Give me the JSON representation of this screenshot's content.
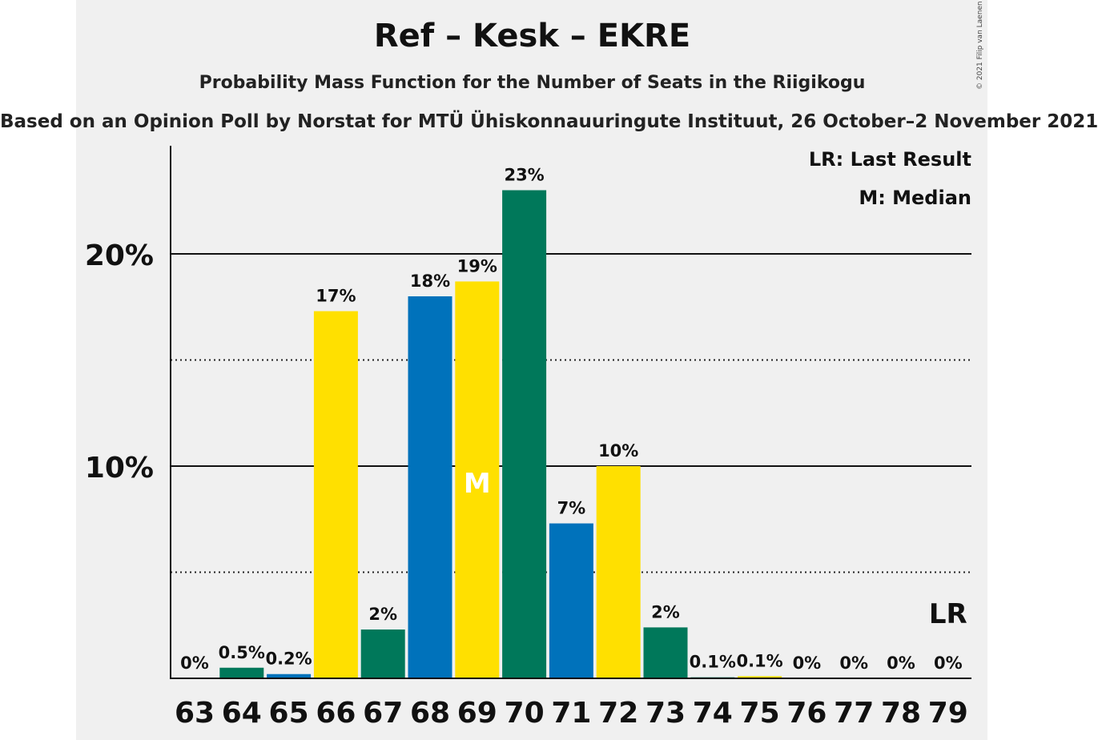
{
  "chart_data": {
    "type": "bar",
    "title": "Ref – Kesk – EKRE",
    "subtitle": "Probability Mass Function for the Number of Seats in the Riigikogu",
    "caption": "Based on an Opinion Poll by Norstat for MTÜ Ühiskonnauuringute Instituut, 26 October–2 November 2021",
    "copyright": "© 2021 Filip van Laenen",
    "categories": [
      "63",
      "64",
      "65",
      "66",
      "67",
      "68",
      "69",
      "70",
      "71",
      "72",
      "73",
      "74",
      "75",
      "76",
      "77",
      "78",
      "79"
    ],
    "values": [
      0,
      0.5,
      0.2,
      17.3,
      2.3,
      18.0,
      18.7,
      23.0,
      7.3,
      10.0,
      2.4,
      0.05,
      0.1,
      0,
      0,
      0,
      0
    ],
    "labels": [
      "0%",
      "0.5%",
      "0.2%",
      "17%",
      "2%",
      "18%",
      "19%",
      "23%",
      "7%",
      "10%",
      "2%",
      "0.1%",
      "0.1%",
      "0%",
      "0%",
      "0%",
      "0%"
    ],
    "bar_colors": [
      "#00785A",
      "#00785A",
      "#0072BB",
      "#FFE000",
      "#00785A",
      "#0072BB",
      "#FFE000",
      "#00785A",
      "#0072BB",
      "#FFE000",
      "#00785A",
      "#00785A",
      "#FFE000",
      "#00785A",
      "#00785A",
      "#00785A",
      "#00785A"
    ],
    "median_category": "69",
    "median_marker": "M",
    "last_result_category": "79",
    "last_result_marker": "LR",
    "yticks": [
      {
        "value": 10,
        "label": "10%"
      },
      {
        "value": 20,
        "label": "20%"
      }
    ],
    "ylim": [
      0,
      25
    ],
    "grid": true,
    "legend": {
      "lr": "LR: Last Result",
      "median": "M: Median",
      "position": "top-right"
    }
  }
}
